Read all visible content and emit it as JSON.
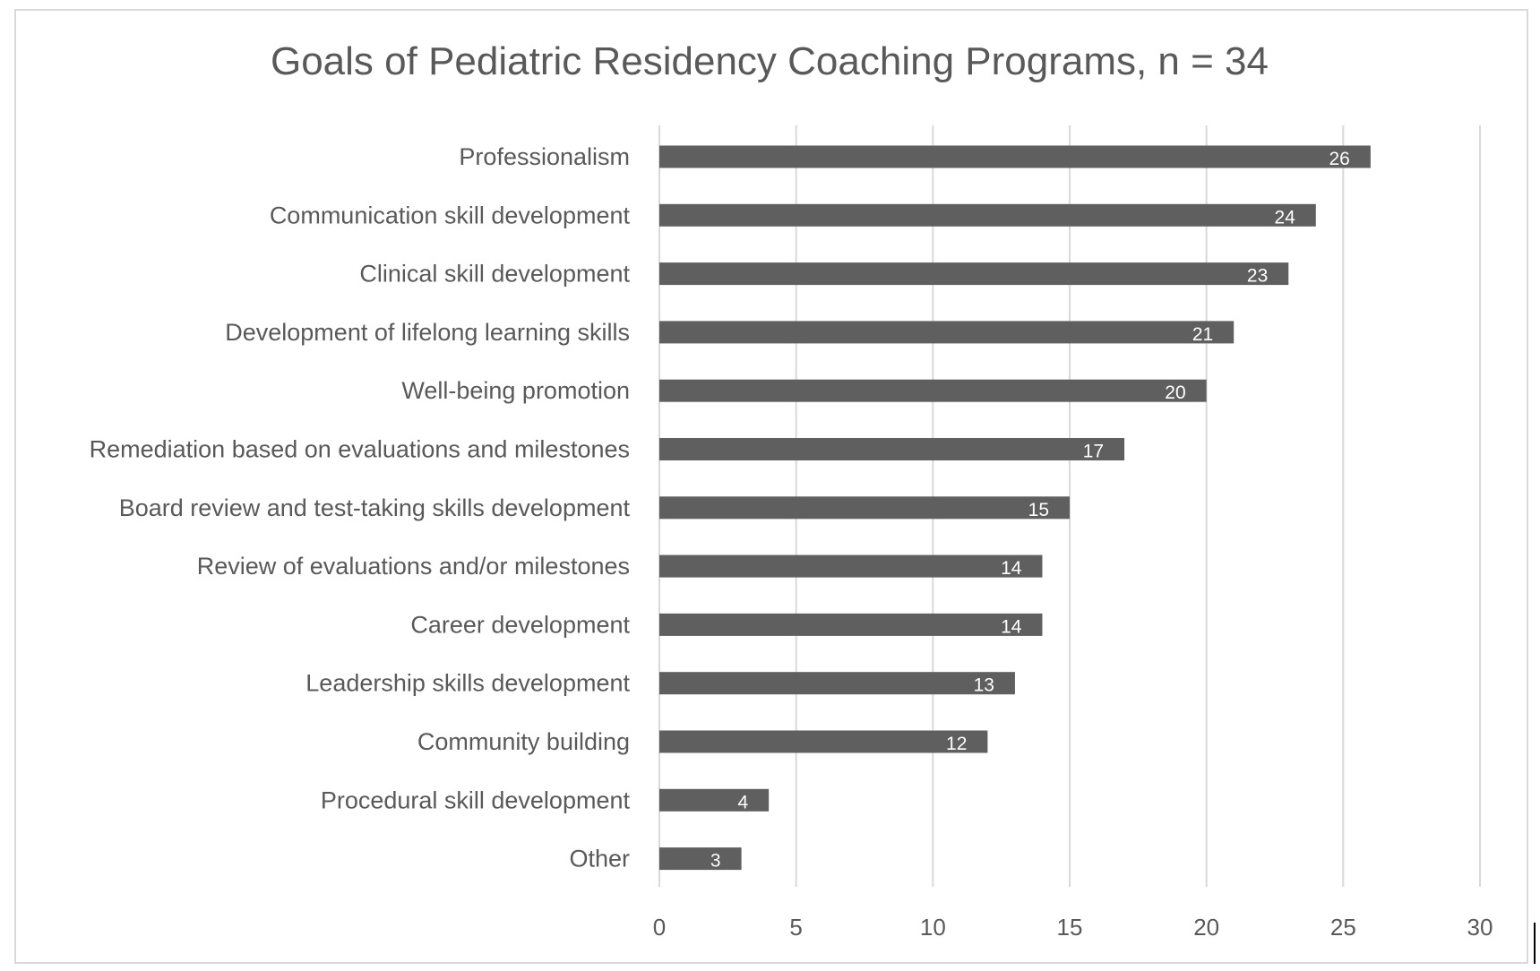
{
  "chart_data": {
    "type": "bar",
    "orientation": "horizontal",
    "title": "Goals of Pediatric Residency Coaching Programs, n = 34",
    "xlabel": "",
    "ylabel": "",
    "categories": [
      "Professionalism",
      "Communication skill development",
      "Clinical skill development",
      "Development of lifelong learning skills",
      "Well-being promotion",
      "Remediation based on evaluations and milestones",
      "Board review and test-taking skills development",
      "Review of evaluations and/or milestones",
      "Career development",
      "Leadership skills development",
      "Community building",
      "Procedural skill development",
      "Other"
    ],
    "values": [
      26,
      24,
      23,
      21,
      20,
      17,
      15,
      14,
      14,
      13,
      12,
      4,
      3
    ],
    "data_labels": [
      "26",
      "24",
      "23",
      "21",
      "20",
      "17",
      "15",
      "14",
      "14",
      "13",
      "12",
      "4",
      "3"
    ],
    "xlim": [
      0,
      30
    ],
    "x_ticks": [
      "0",
      "5",
      "10",
      "15",
      "20",
      "25",
      "30"
    ],
    "grid": "vertical",
    "legend": "none",
    "bar_color": "#5f5f5f",
    "grid_color": "#d9d9d9",
    "text_color": "#595959",
    "label_color": "#ffffff"
  }
}
